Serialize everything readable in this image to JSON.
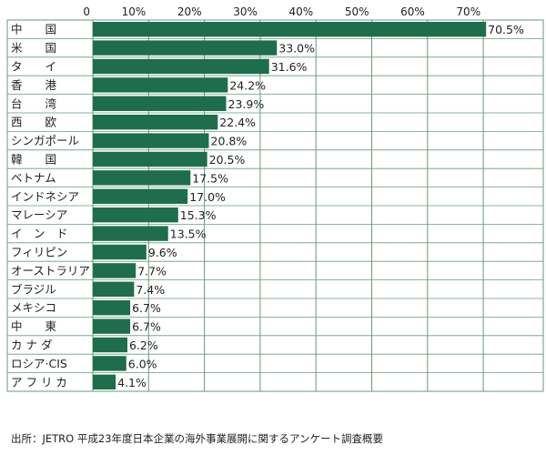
{
  "chart_data": {
    "type": "bar",
    "orientation": "horizontal",
    "categories": [
      "中　　国",
      "米　　国",
      "タ　　イ",
      "香　　港",
      "台　　湾",
      "西　　欧",
      "シンガポール",
      "韓　　国",
      "ベトナム",
      "インドネシア",
      "マレーシア",
      "イ　ン　ド",
      "フィリピン",
      "オーストラリア",
      "ブラジル",
      "メキシコ",
      "中　　東",
      "カ ナ ダ",
      "ロシア·CIS",
      "ア フ リ カ"
    ],
    "values": [
      70.5,
      33.0,
      31.6,
      24.2,
      23.9,
      22.4,
      20.8,
      20.5,
      17.5,
      17.0,
      15.3,
      13.5,
      9.6,
      7.7,
      7.4,
      6.7,
      6.7,
      6.2,
      6.0,
      4.1
    ],
    "value_labels": [
      "70.5%",
      "33.0%",
      "31.6%",
      "24.2%",
      "23.9%",
      "22.4%",
      "20.8%",
      "20.5%",
      "17.5%",
      "17.0%",
      "15.3%",
      "13.5%",
      "9.6%",
      "7.7%",
      "7.4%",
      "6.7%",
      "6.7%",
      "6.2%",
      "6.0%",
      "4.1%"
    ],
    "x_ticks": [
      "0",
      "10%",
      "20%",
      "30%",
      "40%",
      "50%",
      "60%",
      "70%"
    ],
    "x_tick_values": [
      0,
      10,
      20,
      30,
      40,
      50,
      60,
      70
    ],
    "xlim": [
      0,
      70
    ],
    "grid": true,
    "bar_color": "#1e6e4e",
    "grid_color": "#6a9a7a"
  },
  "source": "出所：JETRO 平成23年度日本企業の海外事業展開に関するアンケート調査概要"
}
